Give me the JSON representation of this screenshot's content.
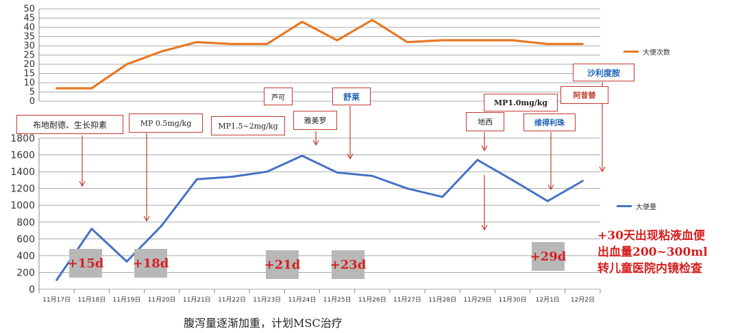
{
  "chart_data": [
    {
      "type": "line",
      "categories": [
        "11月17日",
        "11月18日",
        "11月19日",
        "11月20日",
        "11月21日",
        "11月22日",
        "11月23日",
        "11月24日",
        "11月25日",
        "11月26日",
        "11月27日",
        "11月28日",
        "11月29日",
        "11月30日",
        "12月1日",
        "12月2日"
      ],
      "series": [
        {
          "name": "大便次数",
          "values": [
            7,
            7,
            20,
            27,
            32,
            31,
            31,
            43,
            33,
            44,
            32,
            33,
            33,
            33,
            31,
            31
          ]
        }
      ],
      "yticks": [
        0,
        5,
        10,
        15,
        20,
        25,
        30,
        35,
        40,
        45,
        50
      ],
      "ylim": [
        0,
        50
      ],
      "grid": true,
      "legend": "right",
      "color": "#e87722"
    },
    {
      "type": "line",
      "categories": [
        "11月17日",
        "11月18日",
        "11月19日",
        "11月20日",
        "11月21日",
        "11月22日",
        "11月23日",
        "11月24日",
        "11月25日",
        "11月26日",
        "11月27日",
        "11月28日",
        "11月29日",
        "11月30日",
        "12月1日",
        "12月2日"
      ],
      "series": [
        {
          "name": "大便量",
          "values": [
            110,
            720,
            330,
            760,
            1310,
            1340,
            1400,
            1590,
            1390,
            1350,
            1200,
            1100,
            1540,
            1300,
            1050,
            1290
          ]
        }
      ],
      "yticks": [
        0,
        200,
        400,
        600,
        800,
        1000,
        1200,
        1400,
        1600,
        1800
      ],
      "ylim": [
        0,
        1800
      ],
      "grid": true,
      "legend": "right",
      "color": "#4472c4"
    }
  ],
  "annotations": [
    "布地耐德、生长抑素",
    "MP 0.5mg/kg",
    "MP1.5~2mg/kg",
    "芦可",
    "雅美罗",
    "舒莱",
    "地西",
    "MP1.0mg/kg",
    "维得利珠",
    "阿昔替",
    "沙利度胺"
  ],
  "day_markers": [
    "+15d",
    "+18d",
    "+21d",
    "+23d",
    "+29d"
  ],
  "note_lines": [
    "+30天出现粘液血便",
    "出血量200~300ml",
    "转儿童医院内镜检查"
  ],
  "caption": "腹泻量逐渐加重，计划MSC治疗"
}
